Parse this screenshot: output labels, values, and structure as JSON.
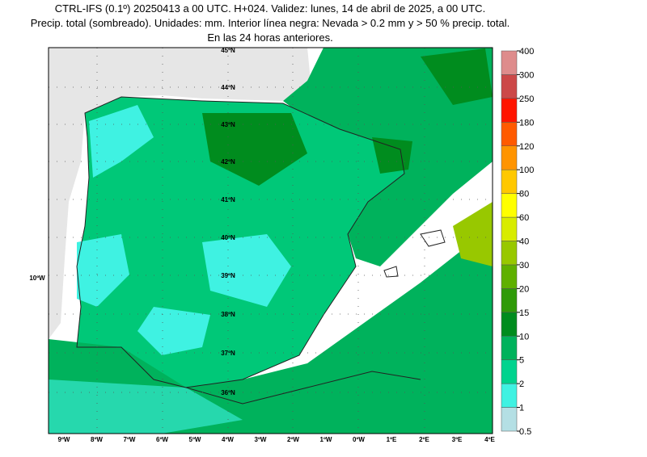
{
  "header": {
    "lines": [
      "CTRL-IFS (0.1º) 20250413 a 00 UTC. H+024. Validez: lunes, 14 de abril de 2025, a 00 UTC.",
      "Precip. total (sombreado). Unidades: mm. Interior línea negra: Nevada > 0.2 mm y > 50 % precip. total.",
      "En las 24 horas anteriores."
    ]
  },
  "map": {
    "lat_labels": [
      "45ºN",
      "44ºN",
      "43ºN",
      "42ºN",
      "41ºN",
      "40ºN",
      "39ºN",
      "38ºN",
      "37ºN",
      "36ºN"
    ],
    "lon_labels": [
      "9ºW",
      "8ºW",
      "7ºW",
      "6ºW",
      "5ºW",
      "4ºW",
      "3ºW",
      "2ºW",
      "1ºW",
      "0ºW",
      "1ºE",
      "2ºE",
      "3ºE",
      "4ºE"
    ],
    "side_label": "10ºW"
  },
  "colorbar": {
    "levels": [
      0.5,
      1,
      2,
      5,
      10,
      15,
      20,
      30,
      40,
      60,
      80,
      100,
      120,
      180,
      250,
      300,
      400
    ],
    "colors": [
      "#b4dfe4",
      "#3ff2e2",
      "#00d38e",
      "#00b25c",
      "#008c1e",
      "#2f9a08",
      "#5fb000",
      "#98c800",
      "#d8ec00",
      "#ffff00",
      "#ffc800",
      "#ff9400",
      "#ff5a00",
      "#ff1400",
      "#cc4848",
      "#de8c8c"
    ]
  }
}
